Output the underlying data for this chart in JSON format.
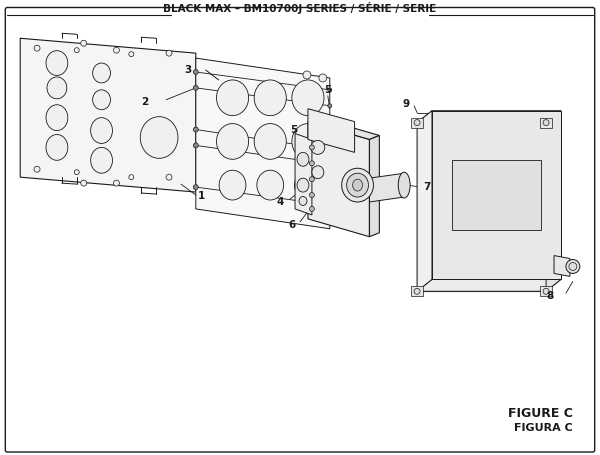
{
  "title": "BLACK MAX – BM10700J SERIES / SÉRIE / SERIE",
  "figure_label": "FIGURE C",
  "figura_label": "FIGURA C",
  "bg_color": "#ffffff",
  "lc": "#1a1a1a",
  "title_fontsize": 7.5,
  "label_fontsize": 7.5
}
